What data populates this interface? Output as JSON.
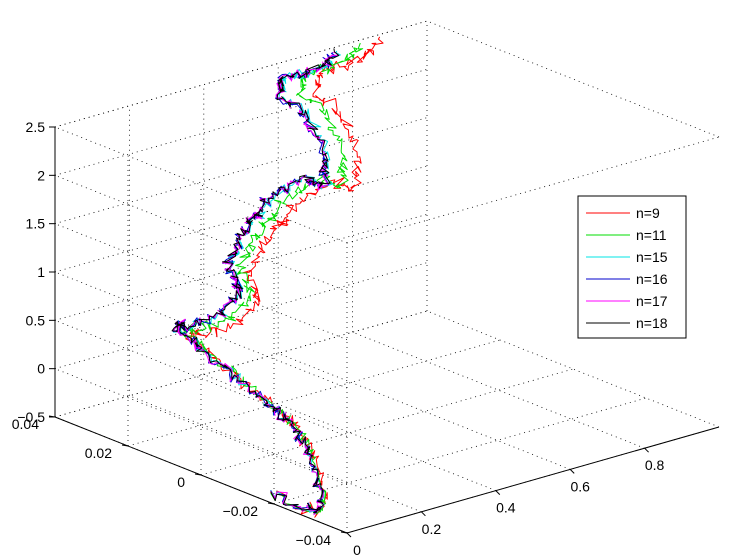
{
  "chart_data": {
    "type": "line",
    "projection": "3d",
    "title": "",
    "xlabel": "",
    "ylabel": "",
    "zlabel": "",
    "xlim": [
      0,
      1
    ],
    "ylim": [
      -0.04,
      0.04
    ],
    "zlim": [
      -0.5,
      2.5
    ],
    "x_ticks": [
      "0",
      "0.2",
      "0.4",
      "0.6",
      "0.8"
    ],
    "y_ticks": [
      "-0.04",
      "-0.02",
      "0",
      "0.02",
      "0.04"
    ],
    "z_ticks": [
      "-0.5",
      "0",
      "0.5",
      "1",
      "1.5",
      "2",
      "2.5"
    ],
    "grid": true,
    "legend_position": "right",
    "series": [
      {
        "name": "n=9",
        "color": "#ff0000",
        "seed": 9,
        "shift": [
          0.06,
          0.0,
          -0.15
        ],
        "amp": 0.01
      },
      {
        "name": "n=11",
        "color": "#00dd00",
        "seed": 11,
        "shift": [
          0.035,
          0.0,
          -0.07
        ],
        "amp": 0.009
      },
      {
        "name": "n=15",
        "color": "#00e5e5",
        "seed": 15,
        "shift": [
          0.005,
          0.0,
          -0.005
        ],
        "amp": 0.008
      },
      {
        "name": "n=16",
        "color": "#0000cc",
        "seed": 16,
        "shift": [
          0.0,
          0.0,
          0.0
        ],
        "amp": 0.008
      },
      {
        "name": "n=17",
        "color": "#ff00ff",
        "seed": 17,
        "shift": [
          0.001,
          0.0,
          0.0
        ],
        "amp": 0.008
      },
      {
        "name": "n=18",
        "color": "#000000",
        "seed": 18,
        "shift": [
          0.002,
          0.0,
          0.002
        ],
        "amp": 0.007
      }
    ],
    "path": [
      [
        0.0,
        -0.02,
        -0.4
      ],
      [
        0.02,
        -0.03,
        -0.45
      ],
      [
        0.05,
        -0.028,
        -0.35
      ],
      [
        0.1,
        -0.02,
        -0.1
      ],
      [
        0.09,
        -0.015,
        0.15
      ],
      [
        0.05,
        -0.015,
        0.35
      ],
      [
        0.02,
        -0.01,
        0.55
      ],
      [
        0.01,
        0.0,
        0.75
      ],
      [
        0.03,
        0.01,
        0.85
      ],
      [
        0.1,
        0.015,
        0.7
      ],
      [
        0.22,
        0.018,
        0.65
      ],
      [
        0.3,
        0.02,
        0.75
      ],
      [
        0.28,
        0.022,
        1.05
      ],
      [
        0.32,
        0.022,
        1.25
      ],
      [
        0.38,
        0.025,
        1.35
      ],
      [
        0.4,
        0.025,
        1.4
      ],
      [
        0.42,
        0.022,
        1.65
      ],
      [
        0.48,
        0.02,
        1.75
      ],
      [
        0.52,
        0.02,
        1.6
      ],
      [
        0.58,
        0.025,
        1.8
      ],
      [
        0.58,
        0.03,
        2.1
      ],
      [
        0.52,
        0.032,
        2.4
      ],
      [
        0.5,
        0.03,
        2.55
      ],
      [
        0.54,
        0.03,
        2.6
      ],
      [
        0.62,
        0.03,
        2.6
      ],
      [
        0.66,
        0.03,
        2.7
      ]
    ]
  }
}
